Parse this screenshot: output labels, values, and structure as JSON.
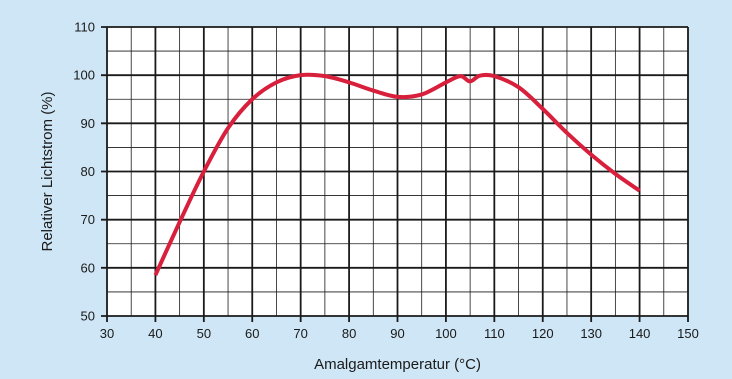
{
  "colors": {
    "background": "#cfe6f6",
    "plot_background": "#ffffff",
    "grid": "#1a1a1a",
    "line": "#d81f3c"
  },
  "chart_data": {
    "type": "line",
    "title": "",
    "xlabel": "Amalgamtemperatur (°C)",
    "ylabel": "Relativer Lichtstrom (%)",
    "xlim": [
      30,
      150
    ],
    "ylim": [
      50,
      110
    ],
    "x_ticks": [
      30,
      40,
      50,
      60,
      70,
      80,
      90,
      100,
      110,
      120,
      130,
      140,
      150
    ],
    "y_ticks": [
      50,
      60,
      70,
      80,
      90,
      100,
      110
    ],
    "minor_grid_x_step": 5,
    "minor_grid_y_step": 5,
    "grid": true,
    "legend": "none",
    "series": [
      {
        "x": [
          40,
          45,
          50,
          55,
          60,
          65,
          70,
          75,
          80,
          85,
          90,
          95,
          100,
          103,
          105,
          107,
          110,
          115,
          120,
          125,
          130,
          135,
          140
        ],
        "values": [
          58.5,
          69.5,
          80,
          89,
          95,
          98.5,
          100,
          99.8,
          98.5,
          96.8,
          95.5,
          96,
          98.5,
          99.8,
          98.7,
          99.9,
          99.8,
          97.5,
          93,
          88,
          83.5,
          79.5,
          76
        ]
      }
    ]
  }
}
